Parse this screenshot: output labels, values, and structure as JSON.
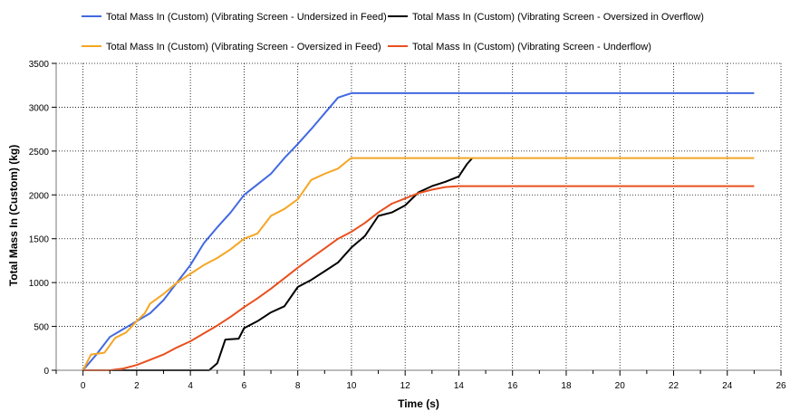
{
  "chart_data": {
    "type": "line",
    "title": "",
    "xlabel": "Time (s)",
    "ylabel": "Total Mass In (Custom) (kg)",
    "xlim": [
      -1,
      26
    ],
    "ylim": [
      0,
      3500
    ],
    "x_ticks": [
      0,
      2,
      4,
      6,
      8,
      10,
      12,
      14,
      16,
      18,
      20,
      22,
      24,
      26
    ],
    "y_ticks": [
      0,
      500,
      1000,
      1500,
      2000,
      2500,
      3000,
      3500
    ],
    "x_tick_labels": [
      "0",
      "2",
      "4",
      "6",
      "8",
      "10",
      "12",
      "14",
      "16",
      "18",
      "20",
      "22",
      "24",
      "26"
    ],
    "y_tick_labels": [
      "0",
      "500",
      "1000",
      "1500",
      "2000",
      "2500",
      "3000",
      "3500"
    ],
    "grid": true,
    "legend_position": "top",
    "series": [
      {
        "name": "Total Mass In (Custom) (Vibrating Screen - Undersized in Feed)",
        "color": "#4169e1",
        "x": [
          0,
          0.5,
          1,
          1.5,
          2,
          2.5,
          3,
          3.5,
          4,
          4.5,
          5,
          5.5,
          6,
          6.5,
          7,
          7.5,
          8,
          8.5,
          9,
          9.5,
          10,
          25
        ],
        "y": [
          0,
          180,
          380,
          470,
          560,
          650,
          800,
          1000,
          1200,
          1450,
          1630,
          1800,
          2000,
          2120,
          2240,
          2420,
          2580,
          2750,
          2930,
          3110,
          3160,
          3160
        ]
      },
      {
        "name": "Total Mass In (Custom) (Vibrating Screen - Oversized in Overflow)",
        "color": "#000000",
        "x": [
          0,
          1,
          2,
          3,
          4,
          4.7,
          5,
          5.3,
          5.8,
          6,
          6.5,
          7,
          7.5,
          8,
          8.5,
          9,
          9.5,
          10,
          10.5,
          11,
          11.5,
          12,
          12.5,
          13,
          13.5,
          14,
          14.3,
          14.5
        ],
        "y": [
          0,
          0,
          0,
          0,
          0,
          0,
          80,
          350,
          360,
          480,
          560,
          660,
          730,
          950,
          1030,
          1130,
          1230,
          1400,
          1530,
          1760,
          1800,
          1880,
          2030,
          2100,
          2150,
          2210,
          2350,
          2420
        ]
      },
      {
        "name": "Total Mass In (Custom) (Vibrating Screen - Oversized in Feed)",
        "color": "#f5a623",
        "x": [
          0,
          0.3,
          0.8,
          1.2,
          1.6,
          2,
          2.3,
          2.5,
          3,
          3.5,
          4,
          4.5,
          5,
          5.5,
          6,
          6.5,
          7,
          7.5,
          8,
          8.5,
          9,
          9.5,
          9.9,
          10,
          25
        ],
        "y": [
          0,
          180,
          200,
          370,
          430,
          560,
          650,
          760,
          870,
          1000,
          1100,
          1200,
          1280,
          1380,
          1500,
          1560,
          1760,
          1840,
          1950,
          2170,
          2240,
          2300,
          2400,
          2420,
          2420
        ]
      },
      {
        "name": "Total Mass In (Custom) (Vibrating Screen - Underflow)",
        "color": "#e8501e",
        "x": [
          0,
          1,
          1.5,
          2,
          2.5,
          3,
          3.5,
          4,
          4.5,
          5,
          5.5,
          6,
          6.5,
          7,
          7.5,
          8,
          8.5,
          9,
          9.5,
          10,
          10.5,
          11,
          11.5,
          12,
          12.5,
          13,
          13.5,
          14,
          25
        ],
        "y": [
          0,
          0,
          20,
          60,
          120,
          180,
          260,
          330,
          420,
          510,
          610,
          720,
          820,
          930,
          1050,
          1170,
          1280,
          1390,
          1500,
          1580,
          1680,
          1800,
          1900,
          1960,
          2020,
          2060,
          2090,
          2100,
          2100
        ]
      }
    ]
  }
}
